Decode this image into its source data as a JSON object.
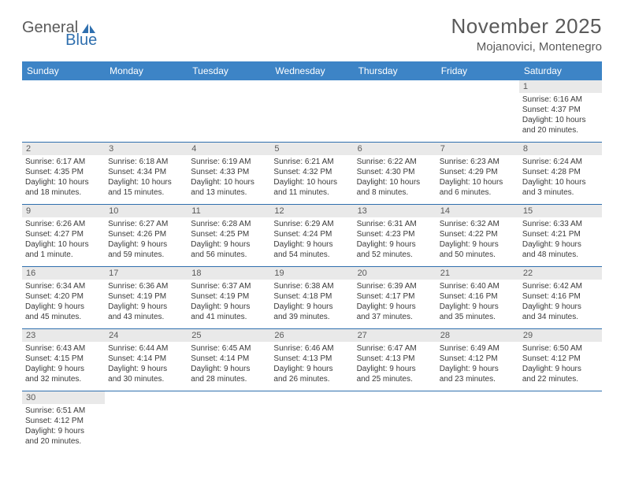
{
  "header": {
    "logo_general": "General",
    "logo_blue": "Blue",
    "month_title": "November 2025",
    "location": "Mojanovici, Montenegro"
  },
  "colors": {
    "header_bg": "#3d84c6",
    "header_text": "#ffffff",
    "daynum_bg": "#e9e9e9",
    "cell_border": "#2f6fae",
    "body_text": "#3a3a3a",
    "title_text": "#5a5a5a",
    "logo_blue": "#2f6fae"
  },
  "weekdays": [
    "Sunday",
    "Monday",
    "Tuesday",
    "Wednesday",
    "Thursday",
    "Friday",
    "Saturday"
  ],
  "weeks": [
    [
      {
        "blank": true
      },
      {
        "blank": true
      },
      {
        "blank": true
      },
      {
        "blank": true
      },
      {
        "blank": true
      },
      {
        "blank": true
      },
      {
        "day": "1",
        "sunrise": "Sunrise: 6:16 AM",
        "sunset": "Sunset: 4:37 PM",
        "daylight1": "Daylight: 10 hours",
        "daylight2": "and 20 minutes."
      }
    ],
    [
      {
        "day": "2",
        "sunrise": "Sunrise: 6:17 AM",
        "sunset": "Sunset: 4:35 PM",
        "daylight1": "Daylight: 10 hours",
        "daylight2": "and 18 minutes."
      },
      {
        "day": "3",
        "sunrise": "Sunrise: 6:18 AM",
        "sunset": "Sunset: 4:34 PM",
        "daylight1": "Daylight: 10 hours",
        "daylight2": "and 15 minutes."
      },
      {
        "day": "4",
        "sunrise": "Sunrise: 6:19 AM",
        "sunset": "Sunset: 4:33 PM",
        "daylight1": "Daylight: 10 hours",
        "daylight2": "and 13 minutes."
      },
      {
        "day": "5",
        "sunrise": "Sunrise: 6:21 AM",
        "sunset": "Sunset: 4:32 PM",
        "daylight1": "Daylight: 10 hours",
        "daylight2": "and 11 minutes."
      },
      {
        "day": "6",
        "sunrise": "Sunrise: 6:22 AM",
        "sunset": "Sunset: 4:30 PM",
        "daylight1": "Daylight: 10 hours",
        "daylight2": "and 8 minutes."
      },
      {
        "day": "7",
        "sunrise": "Sunrise: 6:23 AM",
        "sunset": "Sunset: 4:29 PM",
        "daylight1": "Daylight: 10 hours",
        "daylight2": "and 6 minutes."
      },
      {
        "day": "8",
        "sunrise": "Sunrise: 6:24 AM",
        "sunset": "Sunset: 4:28 PM",
        "daylight1": "Daylight: 10 hours",
        "daylight2": "and 3 minutes."
      }
    ],
    [
      {
        "day": "9",
        "sunrise": "Sunrise: 6:26 AM",
        "sunset": "Sunset: 4:27 PM",
        "daylight1": "Daylight: 10 hours",
        "daylight2": "and 1 minute."
      },
      {
        "day": "10",
        "sunrise": "Sunrise: 6:27 AM",
        "sunset": "Sunset: 4:26 PM",
        "daylight1": "Daylight: 9 hours",
        "daylight2": "and 59 minutes."
      },
      {
        "day": "11",
        "sunrise": "Sunrise: 6:28 AM",
        "sunset": "Sunset: 4:25 PM",
        "daylight1": "Daylight: 9 hours",
        "daylight2": "and 56 minutes."
      },
      {
        "day": "12",
        "sunrise": "Sunrise: 6:29 AM",
        "sunset": "Sunset: 4:24 PM",
        "daylight1": "Daylight: 9 hours",
        "daylight2": "and 54 minutes."
      },
      {
        "day": "13",
        "sunrise": "Sunrise: 6:31 AM",
        "sunset": "Sunset: 4:23 PM",
        "daylight1": "Daylight: 9 hours",
        "daylight2": "and 52 minutes."
      },
      {
        "day": "14",
        "sunrise": "Sunrise: 6:32 AM",
        "sunset": "Sunset: 4:22 PM",
        "daylight1": "Daylight: 9 hours",
        "daylight2": "and 50 minutes."
      },
      {
        "day": "15",
        "sunrise": "Sunrise: 6:33 AM",
        "sunset": "Sunset: 4:21 PM",
        "daylight1": "Daylight: 9 hours",
        "daylight2": "and 48 minutes."
      }
    ],
    [
      {
        "day": "16",
        "sunrise": "Sunrise: 6:34 AM",
        "sunset": "Sunset: 4:20 PM",
        "daylight1": "Daylight: 9 hours",
        "daylight2": "and 45 minutes."
      },
      {
        "day": "17",
        "sunrise": "Sunrise: 6:36 AM",
        "sunset": "Sunset: 4:19 PM",
        "daylight1": "Daylight: 9 hours",
        "daylight2": "and 43 minutes."
      },
      {
        "day": "18",
        "sunrise": "Sunrise: 6:37 AM",
        "sunset": "Sunset: 4:19 PM",
        "daylight1": "Daylight: 9 hours",
        "daylight2": "and 41 minutes."
      },
      {
        "day": "19",
        "sunrise": "Sunrise: 6:38 AM",
        "sunset": "Sunset: 4:18 PM",
        "daylight1": "Daylight: 9 hours",
        "daylight2": "and 39 minutes."
      },
      {
        "day": "20",
        "sunrise": "Sunrise: 6:39 AM",
        "sunset": "Sunset: 4:17 PM",
        "daylight1": "Daylight: 9 hours",
        "daylight2": "and 37 minutes."
      },
      {
        "day": "21",
        "sunrise": "Sunrise: 6:40 AM",
        "sunset": "Sunset: 4:16 PM",
        "daylight1": "Daylight: 9 hours",
        "daylight2": "and 35 minutes."
      },
      {
        "day": "22",
        "sunrise": "Sunrise: 6:42 AM",
        "sunset": "Sunset: 4:16 PM",
        "daylight1": "Daylight: 9 hours",
        "daylight2": "and 34 minutes."
      }
    ],
    [
      {
        "day": "23",
        "sunrise": "Sunrise: 6:43 AM",
        "sunset": "Sunset: 4:15 PM",
        "daylight1": "Daylight: 9 hours",
        "daylight2": "and 32 minutes."
      },
      {
        "day": "24",
        "sunrise": "Sunrise: 6:44 AM",
        "sunset": "Sunset: 4:14 PM",
        "daylight1": "Daylight: 9 hours",
        "daylight2": "and 30 minutes."
      },
      {
        "day": "25",
        "sunrise": "Sunrise: 6:45 AM",
        "sunset": "Sunset: 4:14 PM",
        "daylight1": "Daylight: 9 hours",
        "daylight2": "and 28 minutes."
      },
      {
        "day": "26",
        "sunrise": "Sunrise: 6:46 AM",
        "sunset": "Sunset: 4:13 PM",
        "daylight1": "Daylight: 9 hours",
        "daylight2": "and 26 minutes."
      },
      {
        "day": "27",
        "sunrise": "Sunrise: 6:47 AM",
        "sunset": "Sunset: 4:13 PM",
        "daylight1": "Daylight: 9 hours",
        "daylight2": "and 25 minutes."
      },
      {
        "day": "28",
        "sunrise": "Sunrise: 6:49 AM",
        "sunset": "Sunset: 4:12 PM",
        "daylight1": "Daylight: 9 hours",
        "daylight2": "and 23 minutes."
      },
      {
        "day": "29",
        "sunrise": "Sunrise: 6:50 AM",
        "sunset": "Sunset: 4:12 PM",
        "daylight1": "Daylight: 9 hours",
        "daylight2": "and 22 minutes."
      }
    ],
    [
      {
        "day": "30",
        "sunrise": "Sunrise: 6:51 AM",
        "sunset": "Sunset: 4:12 PM",
        "daylight1": "Daylight: 9 hours",
        "daylight2": "and 20 minutes."
      },
      {
        "blank": true
      },
      {
        "blank": true
      },
      {
        "blank": true
      },
      {
        "blank": true
      },
      {
        "blank": true
      },
      {
        "blank": true
      }
    ]
  ]
}
